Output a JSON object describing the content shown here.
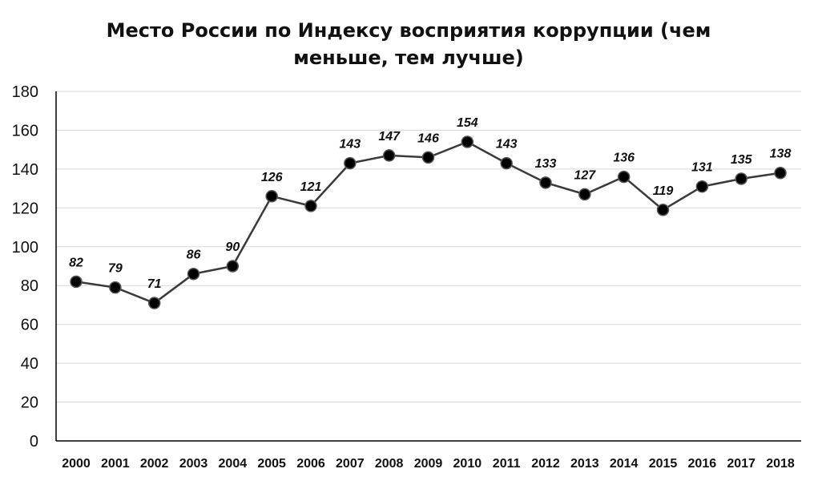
{
  "chart_data": {
    "type": "line",
    "title_line1": "Место России по Индексу восприятия коррупции (чем",
    "title_line2": "меньше, тем лучше)",
    "xlabel": "",
    "ylabel": "",
    "ylim": [
      0,
      180
    ],
    "yticks": [
      0,
      20,
      40,
      60,
      80,
      100,
      120,
      140,
      160,
      180
    ],
    "grid": true,
    "legend": "none",
    "categories": [
      "2000",
      "2001",
      "2002",
      "2003",
      "2004",
      "2005",
      "2006",
      "2007",
      "2008",
      "2009",
      "2010",
      "2011",
      "2012",
      "2013",
      "2014",
      "2015",
      "2016",
      "2017",
      "2018"
    ],
    "series": [
      {
        "values": [
          82,
          79,
          71,
          86,
          90,
          126,
          121,
          143,
          147,
          146,
          154,
          143,
          133,
          127,
          136,
          119,
          131,
          135,
          138
        ]
      }
    ],
    "line_color": "#3a3a3a",
    "marker_color": "#000000"
  }
}
